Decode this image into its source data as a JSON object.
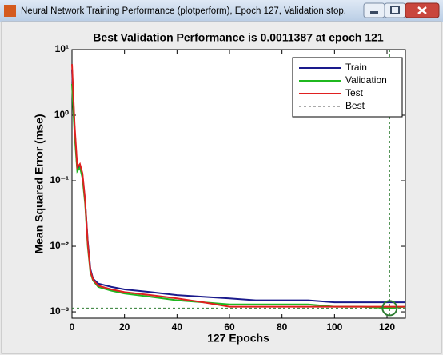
{
  "window": {
    "title": "Neural Network Training Performance (plotperform), Epoch 127, Validation stop."
  },
  "chart_data": {
    "type": "line",
    "title": "Best Validation Performance is 0.0011387 at epoch 121",
    "xlabel": "127 Epochs",
    "ylabel": "Mean Squared Error  (mse)",
    "log_y": true,
    "legend": "upper right",
    "xlim": [
      0,
      127
    ],
    "ylim": [
      0.0008,
      10
    ],
    "xticks": [
      0,
      20,
      40,
      60,
      80,
      100,
      120
    ],
    "yticks": [
      {
        "value": 0.001,
        "label": "10⁻³"
      },
      {
        "value": 0.01,
        "label": "10⁻²"
      },
      {
        "value": 0.1,
        "label": "10⁻¹"
      },
      {
        "value": 1,
        "label": "10⁰"
      },
      {
        "value": 10,
        "label": "10¹"
      }
    ],
    "x": [
      0,
      1,
      2,
      3,
      4,
      5,
      6,
      7,
      8,
      10,
      15,
      20,
      30,
      40,
      50,
      60,
      70,
      80,
      90,
      100,
      110,
      121,
      127
    ],
    "series": [
      {
        "name": "Train",
        "color": "#1a1a8c",
        "values": [
          5,
          0.6,
          0.15,
          0.17,
          0.12,
          0.05,
          0.012,
          0.0045,
          0.0032,
          0.0027,
          0.0024,
          0.0022,
          0.002,
          0.0018,
          0.0017,
          0.0016,
          0.0015,
          0.0015,
          0.0015,
          0.0014,
          0.0014,
          0.0014,
          0.0014
        ]
      },
      {
        "name": "Validation",
        "color": "#1fb81f",
        "values": [
          3,
          0.5,
          0.14,
          0.16,
          0.11,
          0.045,
          0.01,
          0.004,
          0.003,
          0.0024,
          0.0021,
          0.0019,
          0.0017,
          0.0015,
          0.0014,
          0.0013,
          0.0013,
          0.0013,
          0.0013,
          0.0012,
          0.0012,
          0.0011387,
          0.0012
        ]
      },
      {
        "name": "Test",
        "color": "#e02020",
        "values": [
          6,
          0.7,
          0.16,
          0.18,
          0.13,
          0.05,
          0.011,
          0.0042,
          0.0031,
          0.0025,
          0.0022,
          0.002,
          0.0018,
          0.0016,
          0.0014,
          0.0012,
          0.0012,
          0.0012,
          0.0012,
          0.0012,
          0.0012,
          0.0012,
          0.0012
        ]
      }
    ],
    "best": {
      "name": "Best",
      "color": "#2e7d32",
      "x": 121,
      "y": 0.0011387
    }
  }
}
